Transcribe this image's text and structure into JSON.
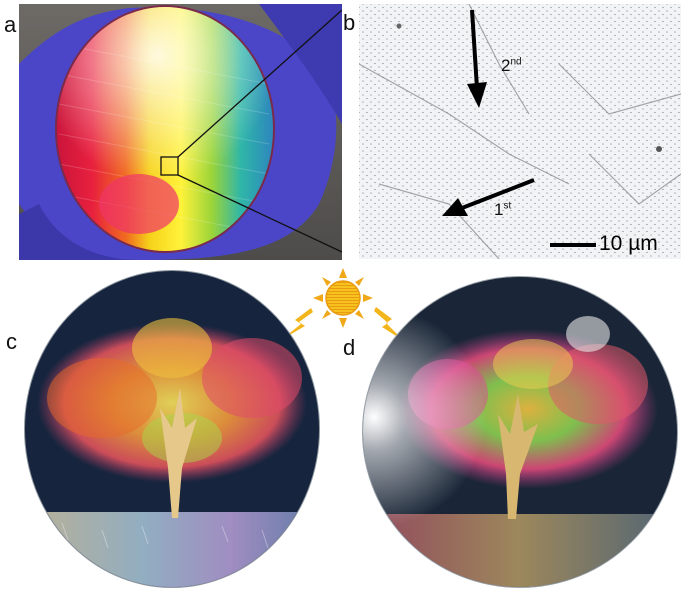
{
  "figure": {
    "panels": [
      {
        "id": "a",
        "label": "a"
      },
      {
        "id": "b",
        "label": "b"
      },
      {
        "id": "c",
        "label": "c"
      },
      {
        "id": "d",
        "label": "d"
      }
    ],
    "panel_b": {
      "arrow_first": {
        "base": "1",
        "sup": "st"
      },
      "arrow_second": {
        "base": "2",
        "sup": "nd"
      },
      "scale_bar": "10 µm"
    },
    "icons": [
      "sun-icon",
      "lightning-bolt-icon"
    ]
  }
}
